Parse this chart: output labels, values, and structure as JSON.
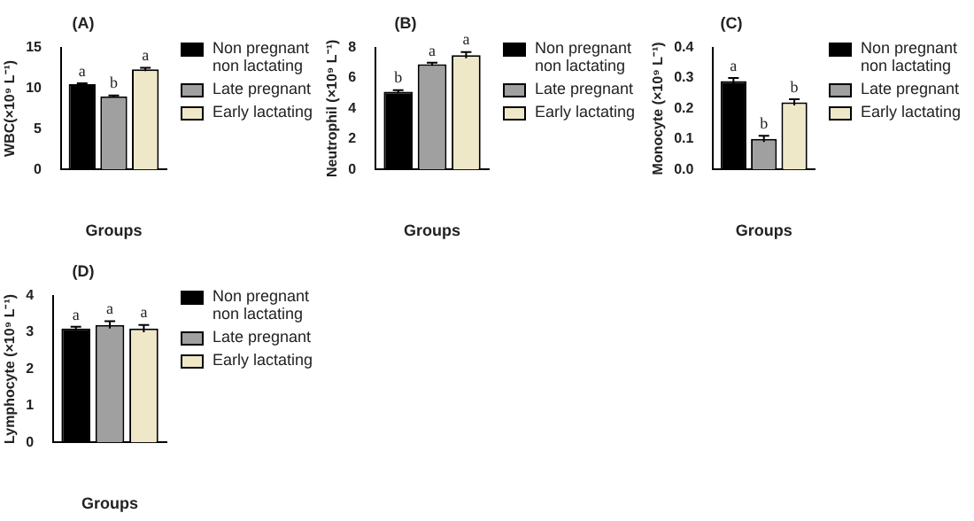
{
  "chart_data": [
    {
      "type": "bar",
      "title": "(A)",
      "xlabel": "Groups",
      "ylabel": "WBC(×10⁹ L⁻¹)",
      "categories": [
        null
      ],
      "legend": "right",
      "grid": false,
      "ylim": [
        0,
        15
      ],
      "yticks": [
        0,
        5,
        10,
        15
      ],
      "series": [
        {
          "name": "Non pregnant non lactating",
          "color": "#000000",
          "values": [
            10.5
          ],
          "errors": [
            0.1
          ],
          "value_labels": [
            "a"
          ]
        },
        {
          "name": "Late pregnant",
          "color": "#a0a0a0",
          "values": [
            9.0
          ],
          "errors": [
            0.1
          ],
          "value_labels": [
            "b"
          ]
        },
        {
          "name": "Early lactating",
          "color": "#efe8c8",
          "values": [
            12.3
          ],
          "errors": [
            0.2
          ],
          "value_labels": [
            "a"
          ]
        }
      ]
    },
    {
      "type": "bar",
      "title": "(B)",
      "xlabel": "Groups",
      "ylabel": "Neutrophil (×10⁹ L⁻¹)",
      "categories": [
        null
      ],
      "legend": "right",
      "grid": false,
      "ylim": [
        0,
        8
      ],
      "yticks": [
        0,
        2,
        4,
        6,
        8
      ],
      "series": [
        {
          "name": "Non pregnant non lactating",
          "color": "#000000",
          "values": [
            5.1
          ],
          "errors": [
            0.1
          ],
          "value_labels": [
            "b"
          ]
        },
        {
          "name": "Late pregnant",
          "color": "#a0a0a0",
          "values": [
            6.9
          ],
          "errors": [
            0.1
          ],
          "value_labels": [
            "a"
          ]
        },
        {
          "name": "Early lactating",
          "color": "#efe8c8",
          "values": [
            7.5
          ],
          "errors": [
            0.2
          ],
          "value_labels": [
            "a"
          ]
        }
      ]
    },
    {
      "type": "bar",
      "title": "(C)",
      "xlabel": "Groups",
      "ylabel": "Monocyte (×10⁹ L⁻¹)",
      "categories": [
        null
      ],
      "legend": "right",
      "grid": false,
      "ylim": [
        0,
        0.4
      ],
      "yticks": [
        {
          "value": 0,
          "label": "0.0"
        },
        0.1,
        0.2,
        0.3,
        0.4
      ],
      "series": [
        {
          "name": "Non pregnant non lactating",
          "color": "#000000",
          "values": [
            0.29
          ],
          "errors": [
            0.01
          ],
          "value_labels": [
            "a"
          ]
        },
        {
          "name": "Late pregnant",
          "color": "#a0a0a0",
          "values": [
            0.1
          ],
          "errors": [
            0.01
          ],
          "value_labels": [
            "b"
          ]
        },
        {
          "name": "Early lactating",
          "color": "#efe8c8",
          "values": [
            0.22
          ],
          "errors": [
            0.01
          ],
          "value_labels": [
            "b"
          ]
        }
      ]
    },
    {
      "type": "bar",
      "title": "(D)",
      "xlabel": "Groups",
      "ylabel": "Lymphocyte (×10⁹ L⁻¹)",
      "categories": [
        null
      ],
      "legend": "right",
      "grid": false,
      "ylim": [
        0,
        4
      ],
      "yticks": [
        0,
        1,
        2,
        3,
        4
      ],
      "series": [
        {
          "name": "Non pregnant non lactating",
          "color": "#000000",
          "values": [
            3.1
          ],
          "errors": [
            0.05
          ],
          "value_labels": [
            "a"
          ]
        },
        {
          "name": "Late pregnant",
          "color": "#a0a0a0",
          "values": [
            3.2
          ],
          "errors": [
            0.1
          ],
          "value_labels": [
            "a"
          ]
        },
        {
          "name": "Early lactating",
          "color": "#efe8c8",
          "values": [
            3.1
          ],
          "errors": [
            0.1
          ],
          "value_labels": [
            "a"
          ]
        }
      ]
    }
  ]
}
